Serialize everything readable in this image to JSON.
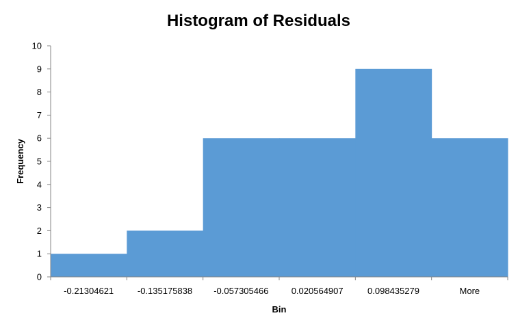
{
  "chart_data": {
    "type": "bar",
    "title": "Histogram of Residuals",
    "xlabel": "Bin",
    "ylabel": "Frequency",
    "categories": [
      "-0.21304621",
      "-0.135175838",
      "-0.057305466",
      "0.020564907",
      "0.098435279",
      "More"
    ],
    "values": [
      1,
      2,
      6,
      6,
      9,
      6
    ],
    "ylim": [
      0,
      10
    ],
    "yticks": [
      "0",
      "1",
      "2",
      "3",
      "4",
      "5",
      "6",
      "7",
      "8",
      "9",
      "10"
    ],
    "grid": false,
    "legend": "none",
    "bar_color": "#5B9BD5",
    "bar_gap": 0
  }
}
